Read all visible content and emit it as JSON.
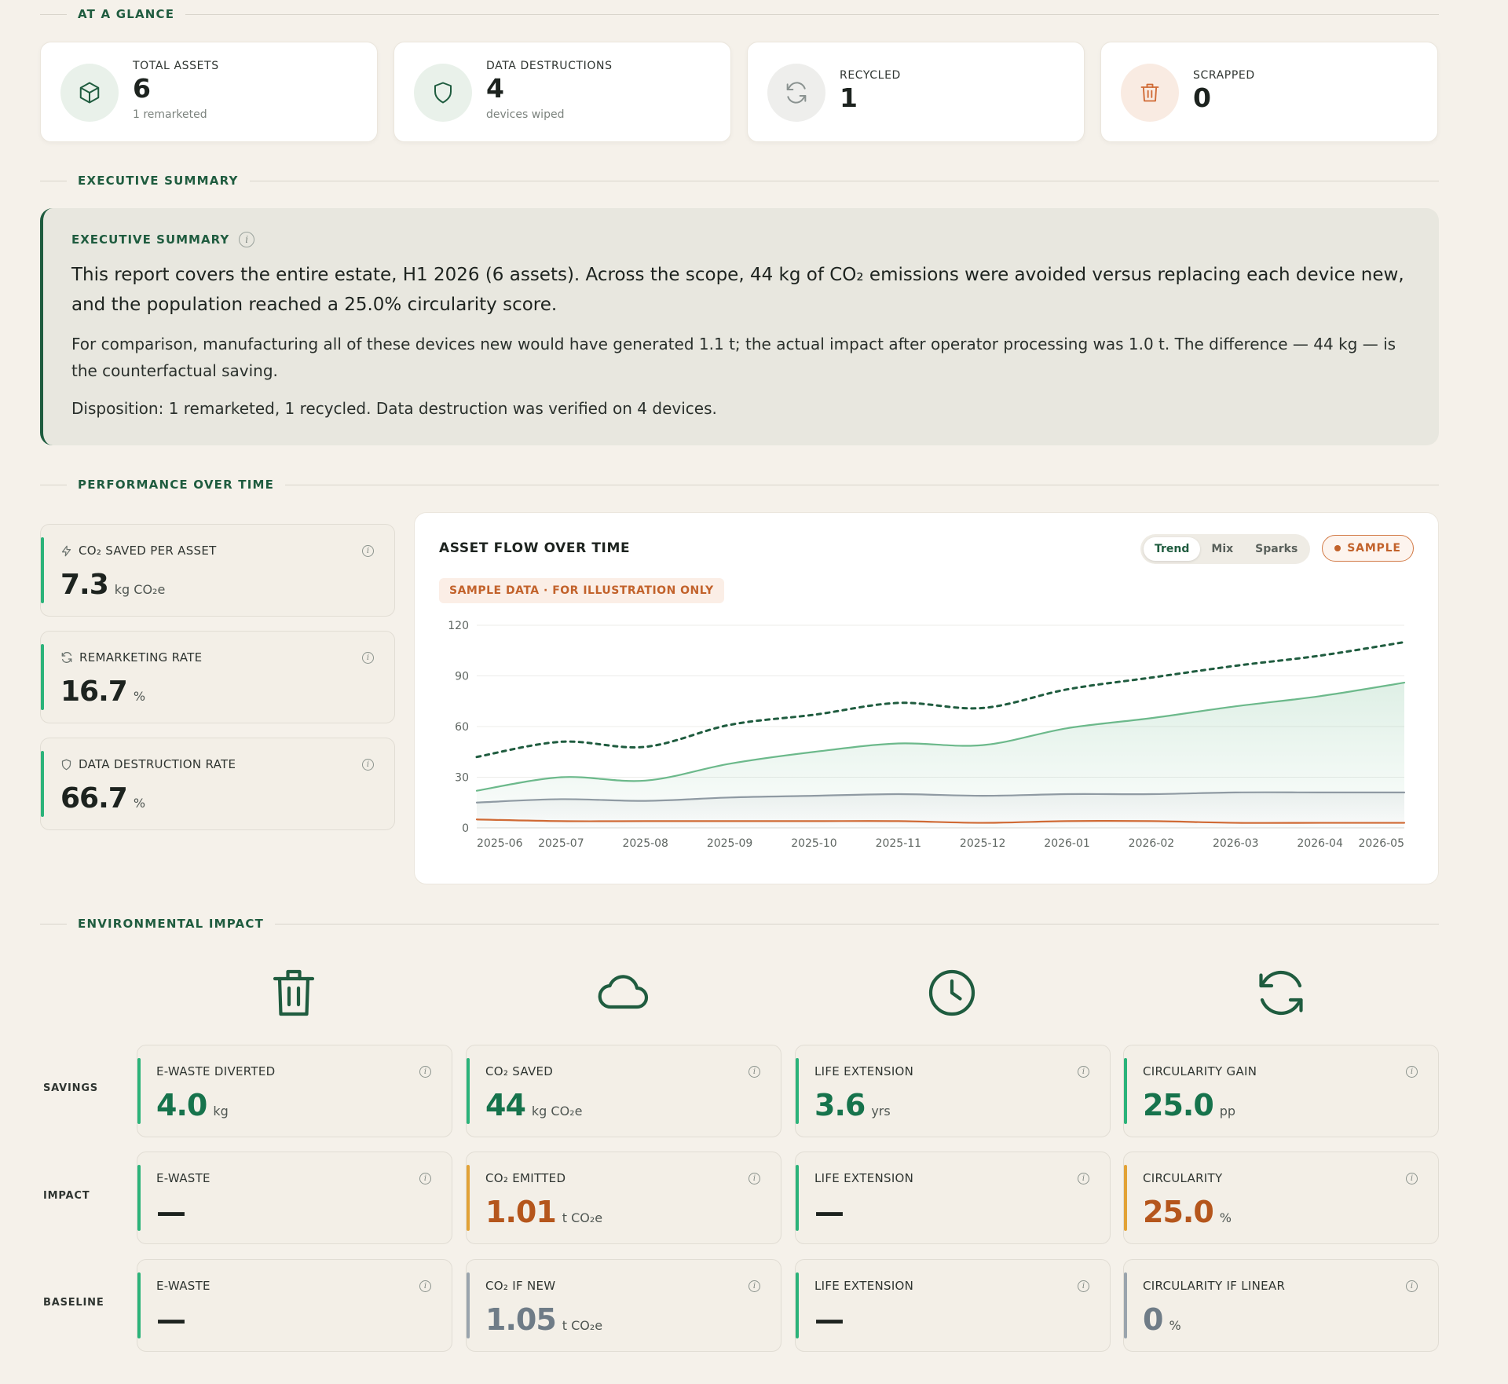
{
  "sections": {
    "glance": "AT A GLANCE",
    "executive": "EXECUTIVE SUMMARY",
    "performance": "PERFORMANCE OVER TIME",
    "environmental": "ENVIRONMENTAL IMPACT"
  },
  "glance": [
    {
      "label": "TOTAL ASSETS",
      "value": "6",
      "sub": "1 remarketed",
      "icon": "cube-icon"
    },
    {
      "label": "DATA DESTRUCTIONS",
      "value": "4",
      "sub": "devices wiped",
      "icon": "shield-icon"
    },
    {
      "label": "RECYCLED",
      "value": "1",
      "sub": "",
      "icon": "refresh-icon"
    },
    {
      "label": "SCRAPPED",
      "value": "0",
      "sub": "",
      "icon": "trash-icon"
    }
  ],
  "executive": {
    "label": "EXECUTIVE SUMMARY",
    "lead": "This report covers the entire estate, H1 2026 (6 assets). Across the scope, 44 kg of CO₂ emissions were avoided versus replacing each device new, and the population reached a 25.0% circularity score.",
    "para1": "For comparison, manufacturing all of these devices new would have generated 1.1 t; the actual impact after operator processing was 1.0 t. The difference — 44 kg — is the counterfactual saving.",
    "para2": "Disposition: 1 remarketed, 1 recycled. Data destruction was verified on 4 devices."
  },
  "kpis": [
    {
      "label": "CO₂ SAVED PER ASSET",
      "value": "7.3",
      "unit": "kg CO₂e",
      "icon": "bolt-icon"
    },
    {
      "label": "REMARKETING RATE",
      "value": "16.7",
      "unit": "%",
      "icon": "refresh-icon"
    },
    {
      "label": "DATA DESTRUCTION RATE",
      "value": "66.7",
      "unit": "%",
      "icon": "shield-icon"
    }
  ],
  "chart_card": {
    "title": "ASSET FLOW OVER TIME",
    "toggle": [
      "Trend",
      "Mix",
      "Sparks"
    ],
    "active_toggle": "Trend",
    "sample_badge": "SAMPLE",
    "sample_note": "SAMPLE DATA · FOR ILLUSTRATION ONLY"
  },
  "chart_data": {
    "type": "line",
    "x": [
      "2025-06",
      "2025-07",
      "2025-08",
      "2025-09",
      "2025-10",
      "2025-11",
      "2025-12",
      "2026-01",
      "2026-02",
      "2026-03",
      "2026-04",
      "2026-05"
    ],
    "ylim": [
      0,
      120
    ],
    "yticks": [
      0,
      30,
      60,
      90,
      120
    ],
    "grid": true,
    "series": [
      {
        "values": [
          42,
          51,
          48,
          61,
          67,
          74,
          71,
          82,
          89,
          96,
          102,
          110
        ],
        "color": "#1f5c3f",
        "style": "dotted"
      },
      {
        "values": [
          22,
          30,
          28,
          38,
          45,
          50,
          49,
          59,
          65,
          72,
          78,
          86
        ],
        "color": "#6cb98b",
        "style": "area"
      },
      {
        "values": [
          15,
          17,
          16,
          18,
          19,
          20,
          19,
          20,
          20,
          21,
          21,
          21
        ],
        "color": "#8f9aa3",
        "style": "area"
      },
      {
        "values": [
          5,
          4,
          4,
          4,
          4,
          4,
          3,
          4,
          4,
          3,
          3,
          3
        ],
        "color": "#d06a35",
        "style": "solid"
      }
    ]
  },
  "env": {
    "icons": [
      "trash-icon",
      "cloud-icon",
      "clock-icon",
      "refresh-icon"
    ],
    "rows": [
      "SAVINGS",
      "IMPACT",
      "BASELINE"
    ],
    "cards": [
      [
        {
          "label": "E-WASTE DIVERTED",
          "value": "4.0",
          "unit": "kg",
          "accent": "#2bb37a",
          "color": "#16734c"
        },
        {
          "label": "CO₂ SAVED",
          "value": "44",
          "unit": "kg CO₂e",
          "accent": "#2bb37a",
          "color": "#16734c"
        },
        {
          "label": "LIFE EXTENSION",
          "value": "3.6",
          "unit": "yrs",
          "accent": "#2bb37a",
          "color": "#16734c"
        },
        {
          "label": "CIRCULARITY GAIN",
          "value": "25.0",
          "unit": "pp",
          "accent": "#2bb37a",
          "color": "#16734c"
        }
      ],
      [
        {
          "label": "E-WASTE",
          "value": "—",
          "unit": "",
          "accent": "#2bb37a",
          "color": "#1d231f"
        },
        {
          "label": "CO₂ EMITTED",
          "value": "1.01",
          "unit": "t CO₂e",
          "accent": "#e2a236",
          "color": "#b5561c"
        },
        {
          "label": "LIFE EXTENSION",
          "value": "—",
          "unit": "",
          "accent": "#2bb37a",
          "color": "#1d231f"
        },
        {
          "label": "CIRCULARITY",
          "value": "25.0",
          "unit": "%",
          "accent": "#e2a236",
          "color": "#b5561c"
        }
      ],
      [
        {
          "label": "E-WASTE",
          "value": "—",
          "unit": "",
          "accent": "#2bb37a",
          "color": "#1d231f"
        },
        {
          "label": "CO₂ IF NEW",
          "value": "1.05",
          "unit": "t CO₂e",
          "accent": "#9aa4ad",
          "color": "#6f7c87"
        },
        {
          "label": "LIFE EXTENSION",
          "value": "—",
          "unit": "",
          "accent": "#2bb37a",
          "color": "#1d231f"
        },
        {
          "label": "CIRCULARITY IF LINEAR",
          "value": "0",
          "unit": "%",
          "accent": "#9aa4ad",
          "color": "#6f7c87"
        }
      ]
    ]
  }
}
